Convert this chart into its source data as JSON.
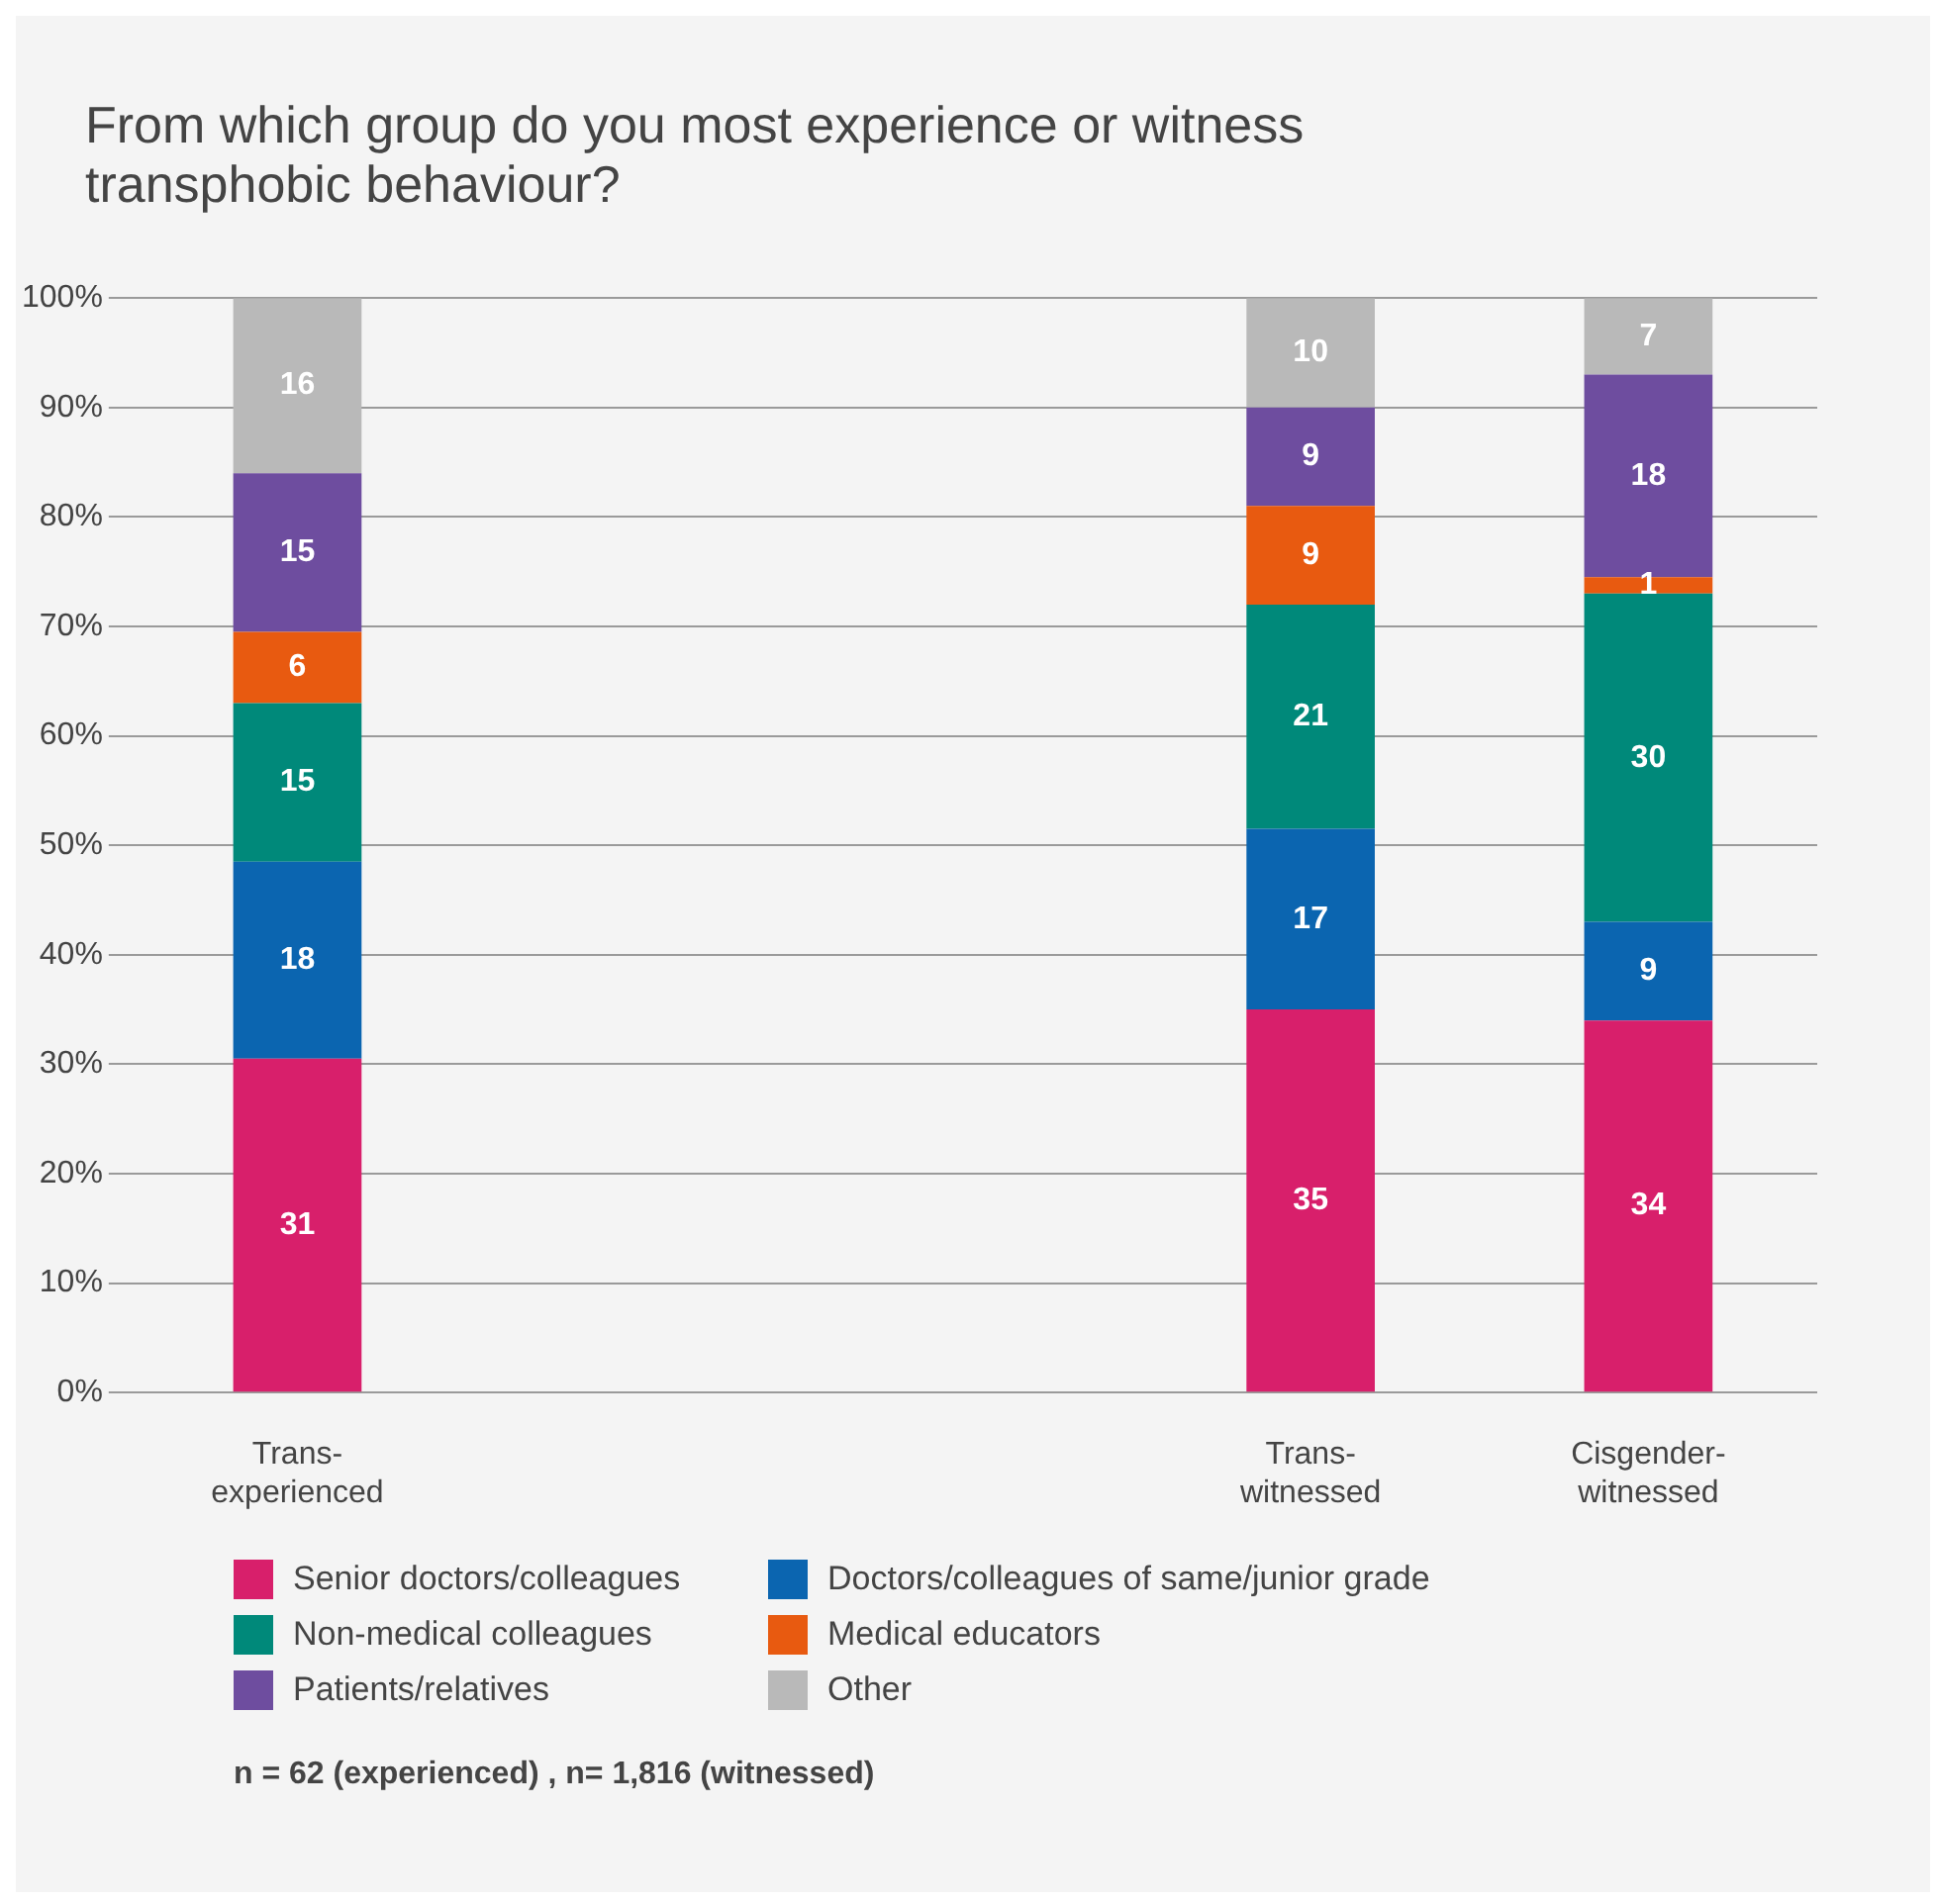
{
  "chart_data": {
    "type": "bar",
    "title": "From which group do you most experience or witness transphobic behaviour?",
    "categories": [
      "Trans-\nexperienced",
      null,
      null,
      "Trans-\nwitnessed",
      "Cisgender-\nwitnessed"
    ],
    "series": [
      {
        "name": "Senior doctors/colleagues",
        "color": "#d81f6b",
        "values": [
          30.5,
          null,
          null,
          35,
          34
        ],
        "value_labels": [
          "31",
          null,
          null,
          "35",
          "34"
        ]
      },
      {
        "name": "Doctors/colleagues of same/junior grade",
        "color": "#0b65b0",
        "values": [
          18,
          null,
          null,
          16.5,
          9
        ],
        "value_labels": [
          "18",
          null,
          null,
          "17",
          "9"
        ]
      },
      {
        "name": "Non-medical colleagues",
        "color": "#00897a",
        "values": [
          14.5,
          null,
          null,
          20.5,
          30
        ],
        "value_labels": [
          "15",
          null,
          null,
          "21",
          "30"
        ]
      },
      {
        "name": "Medical educators",
        "color": "#e85a10",
        "values": [
          6.5,
          null,
          null,
          9,
          1.5
        ],
        "value_labels": [
          "6",
          null,
          null,
          "9",
          "1"
        ]
      },
      {
        "name": "Patients/relatives",
        "color": "#6e4d9f",
        "values": [
          14.5,
          null,
          null,
          9,
          18.5
        ],
        "value_labels": [
          "15",
          null,
          null,
          "9",
          "18"
        ]
      },
      {
        "name": "Other",
        "color": "#b9b9b9",
        "values": [
          16,
          null,
          null,
          10,
          7
        ],
        "value_labels": [
          "16",
          null,
          null,
          "10",
          "7"
        ]
      }
    ],
    "stacked": true,
    "grid": "y",
    "legend": "bottom",
    "ylim": [
      0,
      100
    ],
    "yticks": [
      {
        "value": 0,
        "label": "0%"
      },
      {
        "value": 10,
        "label": "10%"
      },
      {
        "value": 20,
        "label": "20%"
      },
      {
        "value": 30,
        "label": "30%"
      },
      {
        "value": 40,
        "label": "40%"
      },
      {
        "value": 50,
        "label": "50%"
      },
      {
        "value": 60,
        "label": "60%"
      },
      {
        "value": 70,
        "label": "70%"
      },
      {
        "value": 80,
        "label": "80%"
      },
      {
        "value": 90,
        "label": "90%"
      },
      {
        "value": 100,
        "label": "100%"
      }
    ],
    "annotations": [
      "n = 62 (experienced) , n= 1,816 (witnessed)"
    ]
  }
}
